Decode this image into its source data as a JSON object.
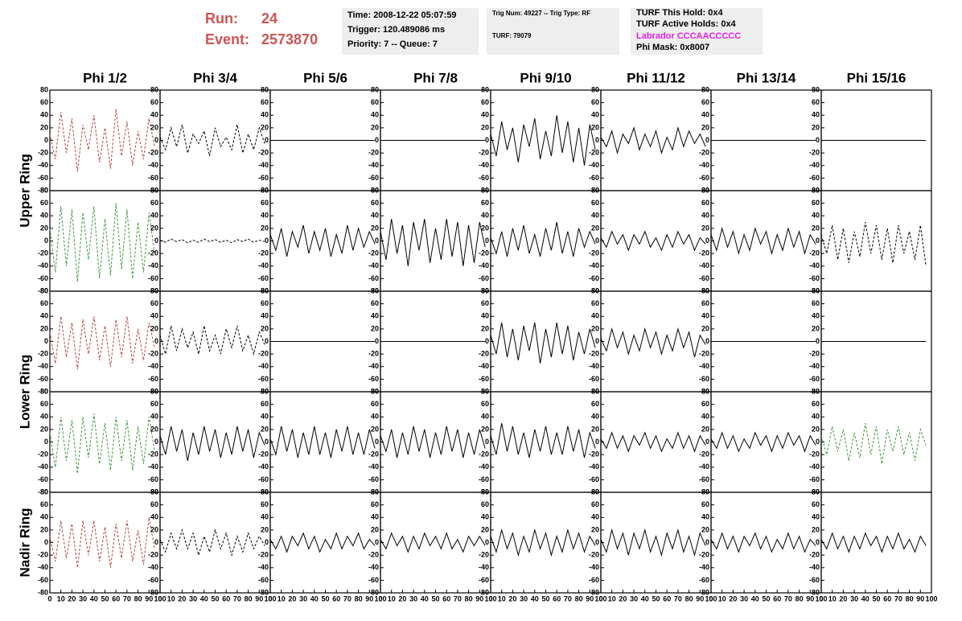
{
  "header": {
    "run_label": "Run:",
    "run": "24",
    "event_label": "Event:",
    "event": "2573870",
    "time": "Time: 2008-12-22 05:07:59",
    "trigger": "Trigger: 120.489086 ms",
    "priority": "Priority: 7 -- Queue: 7",
    "trig_num": "Trig Num: 49227 -- Trig Type: RF",
    "turf": "TURF: 79079",
    "turf_hold": "TURF This Hold: 0x4",
    "turf_active": "TURF Active Holds: 0x4",
    "labrador": "Labrador CCCAACCCCC",
    "phi_mask": "Phi Mask: 0x8007"
  },
  "chart_data": {
    "type": "line",
    "columns": [
      "Phi 1/2",
      "Phi 3/4",
      "Phi 5/6",
      "Phi 7/8",
      "Phi 9/10",
      "Phi 11/12",
      "Phi 13/14",
      "Phi 15/16"
    ],
    "rows": [
      "Upper Ring",
      "Lower Ring",
      "Nadir Ring"
    ],
    "xlim": [
      0,
      100
    ],
    "xticks": [
      0,
      10,
      20,
      30,
      40,
      50,
      60,
      70,
      80,
      90,
      100
    ],
    "ylim": [
      -80,
      80
    ],
    "yticks": [
      -80,
      -60,
      -40,
      -20,
      0,
      20,
      40,
      60,
      80
    ],
    "x": [
      0,
      5,
      10,
      15,
      20,
      25,
      30,
      35,
      40,
      45,
      50,
      55,
      60,
      65,
      70,
      75,
      80,
      85,
      90,
      95
    ],
    "panels": [
      [
        {
          "color": "#c04040",
          "dashed": true,
          "values": [
            10,
            -30,
            45,
            -20,
            35,
            -50,
            25,
            -15,
            40,
            -35,
            20,
            -45,
            50,
            -25,
            30,
            -40,
            15,
            -30,
            35,
            -10
          ]
        },
        {
          "color": "#000000",
          "dashed": true,
          "values": [
            5,
            -15,
            20,
            -10,
            25,
            -20,
            10,
            -5,
            15,
            -25,
            20,
            -10,
            5,
            -15,
            25,
            -20,
            10,
            -15,
            20,
            -5
          ]
        },
        {
          "color": "#000000",
          "dashed": false,
          "values": [
            0,
            0,
            0,
            0,
            0,
            0,
            0,
            0,
            0,
            0,
            0,
            0,
            0,
            0,
            0,
            0,
            0,
            0,
            0,
            0
          ]
        },
        {
          "color": "#000000",
          "dashed": false,
          "values": [
            0,
            0,
            0,
            0,
            0,
            0,
            0,
            0,
            0,
            0,
            0,
            0,
            0,
            0,
            0,
            0,
            0,
            0,
            0,
            0
          ]
        },
        {
          "color": "#000000",
          "dashed": false,
          "values": [
            10,
            -25,
            30,
            -15,
            20,
            -35,
            25,
            -10,
            35,
            -30,
            15,
            -25,
            40,
            -20,
            30,
            -35,
            20,
            -40,
            25,
            -15
          ]
        },
        {
          "color": "#000000",
          "dashed": false,
          "values": [
            5,
            -10,
            15,
            -20,
            10,
            -5,
            20,
            -15,
            10,
            -10,
            15,
            -20,
            5,
            -15,
            20,
            -10,
            15,
            -5,
            10,
            -10
          ]
        },
        {
          "color": "#000000",
          "dashed": false,
          "values": [
            0,
            0,
            0,
            0,
            0,
            0,
            0,
            0,
            0,
            0,
            0,
            0,
            0,
            0,
            0,
            0,
            0,
            0,
            0,
            0
          ]
        },
        {
          "color": "#000000",
          "dashed": false,
          "values": [
            0,
            0,
            0,
            0,
            0,
            0,
            0,
            0,
            0,
            0,
            0,
            0,
            0,
            0,
            0,
            0,
            0,
            0,
            0,
            0
          ]
        }
      ],
      [
        {
          "color": "#3a9a3a",
          "dashed": true,
          "values": [
            20,
            -50,
            55,
            -40,
            50,
            -65,
            45,
            -30,
            55,
            -60,
            35,
            -55,
            60,
            -45,
            50,
            -60,
            30,
            -50,
            45,
            -20
          ]
        },
        {
          "color": "#000000",
          "dashed": true,
          "values": [
            1,
            -2,
            3,
            -1,
            2,
            -3,
            1,
            -2,
            3,
            -1,
            2,
            -2,
            1,
            -3,
            2,
            -1,
            3,
            -2,
            1,
            -1
          ]
        },
        {
          "color": "#000000",
          "dashed": false,
          "values": [
            10,
            -15,
            20,
            -25,
            15,
            -10,
            25,
            -20,
            15,
            -15,
            20,
            -25,
            10,
            -20,
            25,
            -15,
            20,
            -10,
            15,
            -5
          ]
        },
        {
          "color": "#000000",
          "dashed": false,
          "values": [
            15,
            -30,
            35,
            -20,
            25,
            -40,
            30,
            -15,
            35,
            -35,
            20,
            -30,
            35,
            -25,
            30,
            -40,
            25,
            -35,
            30,
            -10
          ]
        },
        {
          "color": "#000000",
          "dashed": false,
          "values": [
            5,
            -20,
            15,
            -25,
            20,
            -15,
            25,
            -20,
            10,
            -25,
            20,
            -15,
            30,
            -20,
            15,
            -25,
            20,
            -10,
            15,
            -5
          ]
        },
        {
          "color": "#000000",
          "dashed": false,
          "values": [
            5,
            -10,
            15,
            -5,
            10,
            -15,
            10,
            -5,
            15,
            -10,
            5,
            -15,
            10,
            -10,
            15,
            -5,
            10,
            -15,
            5,
            -5
          ]
        },
        {
          "color": "#000000",
          "dashed": false,
          "values": [
            10,
            -15,
            20,
            -10,
            15,
            -20,
            10,
            -15,
            20,
            -5,
            15,
            -20,
            10,
            -15,
            20,
            -10,
            15,
            -20,
            10,
            -5
          ]
        },
        {
          "color": "#000000",
          "dashed": true,
          "values": [
            10,
            -20,
            25,
            -30,
            20,
            -35,
            15,
            -25,
            30,
            -20,
            25,
            -30,
            20,
            -35,
            25,
            -20,
            15,
            -30,
            25,
            -40
          ]
        }
      ],
      [
        {
          "color": "#c04040",
          "dashed": true,
          "values": [
            15,
            -35,
            40,
            -25,
            30,
            -45,
            35,
            -20,
            40,
            -30,
            25,
            -40,
            35,
            -25,
            40,
            -35,
            20,
            -30,
            30,
            -10
          ]
        },
        {
          "color": "#000000",
          "dashed": true,
          "values": [
            10,
            -20,
            25,
            -15,
            20,
            -10,
            15,
            -20,
            25,
            -15,
            10,
            -20,
            20,
            -10,
            25,
            -15,
            10,
            -20,
            15,
            -5
          ]
        },
        {
          "color": "#000000",
          "dashed": false,
          "values": [
            0,
            0,
            0,
            0,
            0,
            0,
            0,
            0,
            0,
            0,
            0,
            0,
            0,
            0,
            0,
            0,
            0,
            0,
            0,
            0
          ]
        },
        {
          "color": "#000000",
          "dashed": false,
          "values": [
            0,
            0,
            0,
            0,
            0,
            0,
            0,
            0,
            0,
            0,
            0,
            0,
            0,
            0,
            0,
            0,
            0,
            0,
            0,
            0
          ]
        },
        {
          "color": "#000000",
          "dashed": false,
          "values": [
            10,
            -20,
            30,
            -25,
            20,
            -30,
            25,
            -15,
            30,
            -35,
            20,
            -25,
            30,
            -20,
            25,
            -30,
            15,
            -20,
            20,
            -10
          ]
        },
        {
          "color": "#000000",
          "dashed": false,
          "values": [
            5,
            -15,
            20,
            -10,
            15,
            -20,
            10,
            -15,
            20,
            -10,
            15,
            -20,
            10,
            -15,
            20,
            -10,
            15,
            -25,
            10,
            -5
          ]
        },
        {
          "color": "#000000",
          "dashed": false,
          "values": [
            0,
            0,
            0,
            0,
            0,
            0,
            0,
            0,
            0,
            0,
            0,
            0,
            0,
            0,
            0,
            0,
            0,
            0,
            0,
            0
          ]
        },
        {
          "color": "#000000",
          "dashed": false,
          "values": [
            0,
            0,
            0,
            0,
            0,
            0,
            0,
            0,
            0,
            0,
            0,
            0,
            0,
            0,
            0,
            0,
            0,
            0,
            0,
            0
          ]
        }
      ],
      [
        {
          "color": "#3a9a3a",
          "dashed": true,
          "values": [
            15,
            -40,
            40,
            -30,
            35,
            -50,
            40,
            -25,
            45,
            -35,
            30,
            -45,
            40,
            -30,
            35,
            -45,
            25,
            -35,
            40,
            -15
          ]
        },
        {
          "color": "#000000",
          "dashed": false,
          "values": [
            10,
            -20,
            25,
            -15,
            20,
            -30,
            15,
            -20,
            25,
            -15,
            20,
            -25,
            15,
            -20,
            25,
            -15,
            20,
            -25,
            15,
            -5
          ]
        },
        {
          "color": "#000000",
          "dashed": false,
          "values": [
            5,
            -20,
            25,
            -15,
            20,
            -25,
            15,
            -20,
            25,
            -20,
            15,
            -25,
            20,
            -15,
            25,
            -20,
            15,
            -20,
            20,
            -10
          ]
        },
        {
          "color": "#000000",
          "dashed": false,
          "values": [
            10,
            -15,
            20,
            -25,
            15,
            -20,
            25,
            -15,
            20,
            -25,
            15,
            -20,
            25,
            -15,
            20,
            -25,
            15,
            -20,
            20,
            -10
          ]
        },
        {
          "color": "#000000",
          "dashed": false,
          "values": [
            10,
            -20,
            30,
            -15,
            25,
            -20,
            15,
            -25,
            20,
            -15,
            25,
            -20,
            15,
            -20,
            25,
            -15,
            20,
            -25,
            15,
            -10
          ]
        },
        {
          "color": "#000000",
          "dashed": false,
          "values": [
            5,
            -10,
            15,
            -10,
            10,
            -15,
            10,
            -5,
            15,
            -10,
            10,
            -15,
            5,
            -10,
            15,
            -10,
            10,
            -15,
            10,
            -5
          ]
        },
        {
          "color": "#000000",
          "dashed": false,
          "values": [
            5,
            -10,
            15,
            -10,
            10,
            -15,
            5,
            -10,
            15,
            -5,
            10,
            -15,
            10,
            -10,
            15,
            -5,
            10,
            -15,
            10,
            -5
          ]
        },
        {
          "color": "#3a9a3a",
          "dashed": true,
          "values": [
            10,
            -20,
            25,
            -15,
            20,
            -30,
            15,
            -25,
            30,
            -20,
            25,
            -35,
            20,
            -15,
            25,
            -20,
            15,
            -30,
            20,
            -5
          ]
        }
      ],
      [
        {
          "color": "#c04040",
          "dashed": true,
          "values": [
            10,
            -30,
            35,
            -25,
            30,
            -40,
            35,
            -20,
            35,
            -30,
            25,
            -40,
            30,
            -25,
            35,
            -30,
            20,
            -35,
            40,
            -10
          ]
        },
        {
          "color": "#000000",
          "dashed": true,
          "values": [
            5,
            -15,
            15,
            -10,
            20,
            -10,
            15,
            -20,
            10,
            -15,
            20,
            -10,
            15,
            -20,
            10,
            -15,
            15,
            -10,
            10,
            -5
          ]
        },
        {
          "color": "#000000",
          "dashed": false,
          "values": [
            5,
            -10,
            10,
            -15,
            10,
            -5,
            15,
            -10,
            10,
            -15,
            5,
            -10,
            15,
            -10,
            10,
            -5,
            15,
            -10,
            5,
            -5
          ]
        },
        {
          "color": "#000000",
          "dashed": false,
          "values": [
            5,
            -10,
            15,
            -5,
            10,
            -15,
            10,
            -10,
            15,
            -5,
            10,
            -10,
            15,
            -10,
            5,
            -15,
            10,
            -5,
            10,
            -5
          ]
        },
        {
          "color": "#000000",
          "dashed": false,
          "values": [
            10,
            -15,
            20,
            -10,
            15,
            -20,
            10,
            -15,
            20,
            -10,
            15,
            -20,
            10,
            -15,
            20,
            -10,
            15,
            -15,
            10,
            -5
          ]
        },
        {
          "color": "#000000",
          "dashed": false,
          "values": [
            5,
            -15,
            20,
            -10,
            15,
            -20,
            15,
            -10,
            20,
            -15,
            10,
            -20,
            15,
            -10,
            20,
            -15,
            10,
            -20,
            15,
            -5
          ]
        },
        {
          "color": "#000000",
          "dashed": false,
          "values": [
            5,
            -10,
            15,
            -10,
            10,
            -15,
            10,
            -5,
            15,
            -10,
            10,
            -15,
            5,
            -10,
            15,
            -10,
            10,
            -15,
            5,
            -5
          ]
        },
        {
          "color": "#000000",
          "dashed": false,
          "values": [
            5,
            -10,
            15,
            -10,
            10,
            -15,
            10,
            -10,
            15,
            -5,
            10,
            -15,
            10,
            -10,
            15,
            -10,
            5,
            -15,
            10,
            -5
          ]
        }
      ]
    ]
  }
}
